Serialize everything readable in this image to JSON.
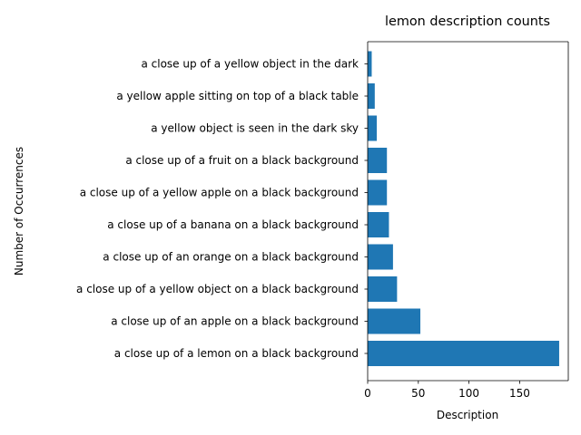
{
  "chart_data": {
    "type": "bar",
    "orientation": "horizontal",
    "title": "lemon description counts",
    "xlabel": "Description",
    "ylabel": "Number of Occurrences",
    "categories": [
      "a close up of a lemon on a black background",
      "a close up of an apple on a black background",
      "a close up of a yellow object on a black background",
      "a close up of an orange on a black background",
      "a close up of a banana on a black background",
      "a close up of a yellow apple on a black background",
      "a close up of a fruit on a black background",
      "a yellow object is seen in the dark sky",
      "a yellow apple sitting on top of a black table",
      "a close up of a yellow object in the dark"
    ],
    "values": [
      189,
      52,
      29,
      25,
      21,
      19,
      19,
      9,
      7,
      4
    ],
    "xlim": [
      0,
      198
    ],
    "xticks": [
      0,
      50,
      100,
      150
    ],
    "bar_color": "#1f77b4",
    "grid": false
  }
}
